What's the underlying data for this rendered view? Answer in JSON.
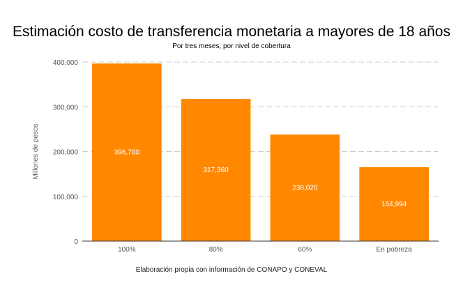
{
  "chart_data": {
    "type": "bar",
    "title": "Estimación costo de transferencia monetaria a mayores de 18 años",
    "subtitle": "Por tres meses, por nivel de cobertura",
    "ylabel": "Millones de pesos",
    "xlabel": "",
    "footer": "Elaboración propia con información de CONAPO y CONEVAL",
    "categories": [
      "100%",
      "80%",
      "60%",
      "En pobreza"
    ],
    "values": [
      396700,
      317360,
      238020,
      164994
    ],
    "value_labels": [
      "396,700",
      "317,360",
      "238,020",
      "164,994"
    ],
    "ylim": [
      0,
      400000
    ],
    "yticks": [
      0,
      100000,
      200000,
      300000,
      400000
    ],
    "ytick_labels": [
      "0",
      "100,000",
      "200,000",
      "300,000",
      "400,000"
    ],
    "grid": "dashed-horizontal",
    "legend": "none",
    "colors": {
      "bar": "#ff8800",
      "grid": "#cccccc",
      "axis": "#333333"
    }
  }
}
